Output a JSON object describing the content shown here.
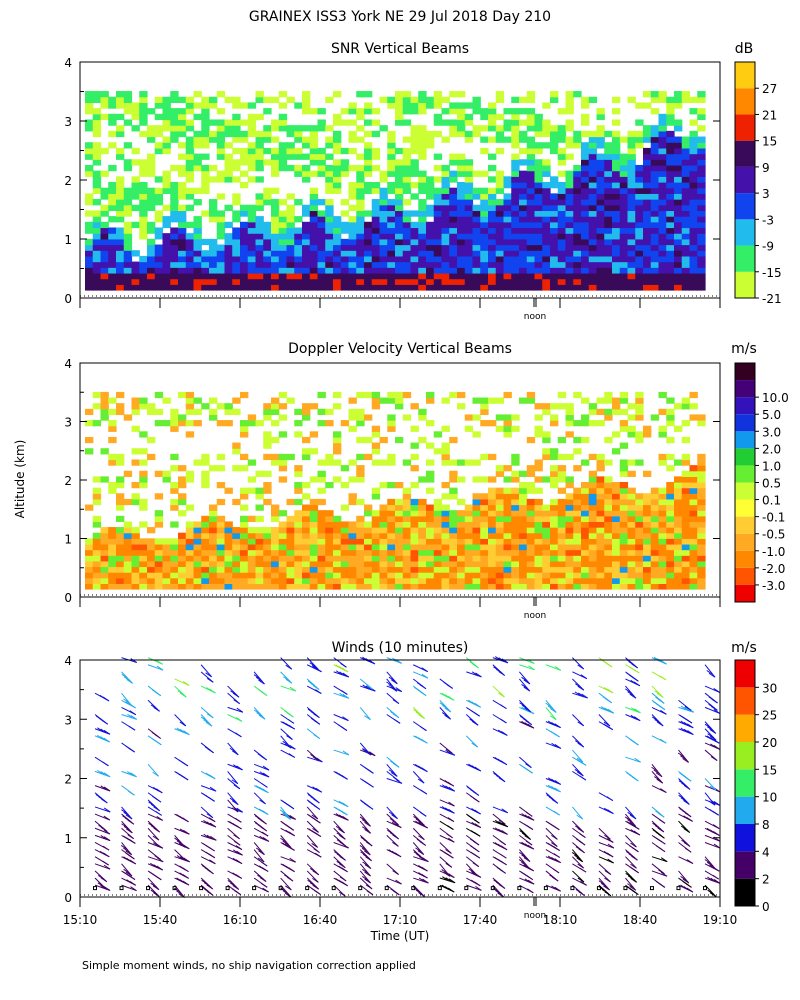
{
  "figure": {
    "title": "GRAINEX ISS3 York NE  29 Jul 2018 Day 210",
    "ylabel": "Altitude (km)",
    "xlabel": "Time (UT)",
    "footnote": "Simple moment winds, no ship navigation correction applied",
    "noon_label": "noon"
  },
  "chart_data": [
    {
      "type": "heatmap",
      "title": "SNR Vertical Beams",
      "unit": "dB",
      "ylim": [
        0,
        4
      ],
      "yticks": [
        "0",
        "1",
        "2",
        "3",
        "4"
      ],
      "colorbar": {
        "colors": [
          "#ccff33",
          "#33ee66",
          "#22bbee",
          "#1144ee",
          "#4411aa",
          "#3a0a5a",
          "#ee2200",
          "#ff8800",
          "#ffcc11"
        ],
        "labels": [
          "-21",
          "-15",
          "-9",
          "-3",
          "3",
          "9",
          "15",
          "21",
          "27"
        ]
      }
    },
    {
      "type": "heatmap",
      "title": "Doppler Velocity Vertical Beams",
      "unit": "m/s",
      "ylim": [
        0,
        4
      ],
      "yticks": [
        "0",
        "1",
        "2",
        "3",
        "4"
      ],
      "colorbar": {
        "colors": [
          "#ee0000",
          "#ff5500",
          "#ff8800",
          "#ffaa22",
          "#ffcc33",
          "#ffff33",
          "#ccff33",
          "#66ee33",
          "#22cc33",
          "#1199ee",
          "#1133dd",
          "#3311bb",
          "#440077",
          "#330022"
        ],
        "labels": [
          "-3.0",
          "-2.0",
          "-1.0",
          "-0.5",
          "-0.1",
          "0.1",
          "0.5",
          "1.0",
          "2.0",
          "3.0",
          "5.0",
          "10.0"
        ]
      }
    },
    {
      "type": "barbs",
      "title": "Winds (10 minutes)",
      "unit": "m/s",
      "ylim": [
        0,
        4
      ],
      "yticks": [
        "0",
        "1",
        "2",
        "3",
        "4"
      ],
      "x": [
        "15:10",
        "15:40",
        "16:10",
        "16:40",
        "17:10",
        "17:40",
        "18:10",
        "18:40",
        "19:10"
      ],
      "colorbar": {
        "colors": [
          "#000000",
          "#440066",
          "#1111dd",
          "#22aaee",
          "#33ee66",
          "#99ee22",
          "#ffaa00",
          "#ff5500",
          "#ee0000"
        ],
        "labels": [
          "0",
          "2",
          "4",
          "8",
          "10",
          "15",
          "20",
          "25",
          "30"
        ]
      }
    }
  ]
}
